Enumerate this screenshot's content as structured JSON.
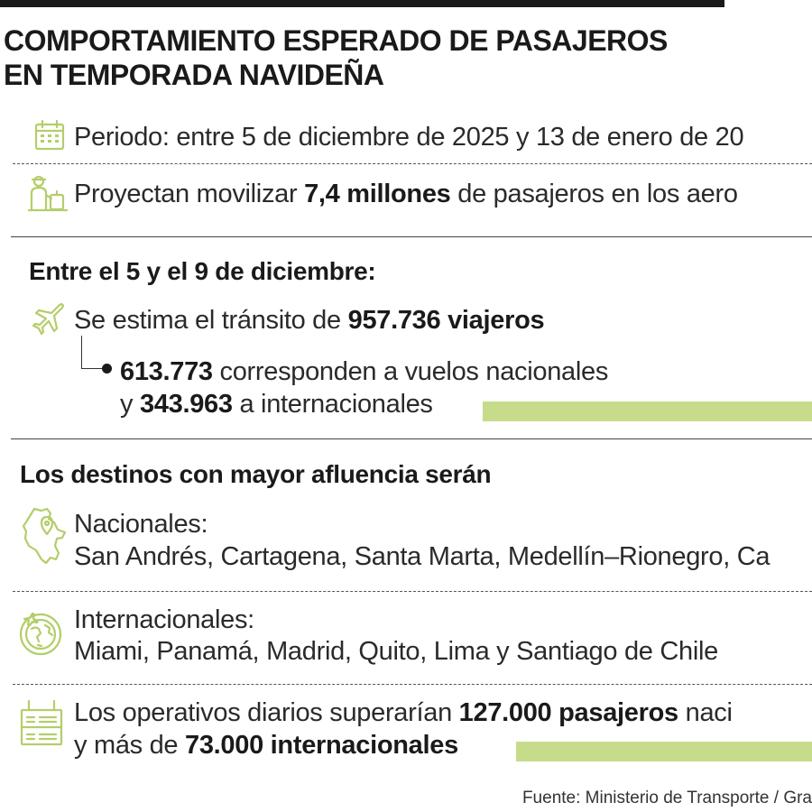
{
  "title": {
    "line1": "COMPORTAMIENTO ESPERADO DE PASAJEROS",
    "line2": "EN TEMPORADA NAVIDEÑA"
  },
  "periodo": {
    "icon": "calendar-icon",
    "text": "Periodo: entre 5 de diciembre de 2025 y 13 de enero de 20"
  },
  "proyeccion": {
    "icon": "worker-luggage-icon",
    "pre": "Proyectan movilizar ",
    "bold": "7,4 millones",
    "post": " de pasajeros en los aero"
  },
  "seccion_diciembre": {
    "heading": "Entre el 5 y el 9 de diciembre:",
    "icon": "airplane-icon",
    "transito_pre": "Se estima el tránsito de ",
    "transito_bold": "957.736 viajeros",
    "nacionales_bold": "613.773",
    "nacionales_post": " corresponden a vuelos nacionales",
    "internacionales_pre": "y ",
    "internacionales_bold": "343.963",
    "internacionales_post": " a internacionales"
  },
  "destinos": {
    "heading": "Los destinos con mayor afluencia serán",
    "nacionales": {
      "icon": "colombia-map-pin-icon",
      "label": "Nacionales:",
      "list": "San Andrés, Cartagena, Santa Marta, Medellín–Rionegro, Ca"
    },
    "internacionales": {
      "icon": "globe-plane-icon",
      "label": "Internacionales:",
      "list": "Miami, Panamá, Madrid, Quito, Lima y Santiago de Chile"
    }
  },
  "operativos": {
    "icon": "departures-board-icon",
    "line1_pre": "Los operativos diarios superarían ",
    "line1_bold": "127.000 pasajeros",
    "line1_post": " naci",
    "line2_pre": "y más de ",
    "line2_bold": "73.000 internacionales"
  },
  "fuente": "Fuente: Ministerio de Transporte / Gra",
  "colors": {
    "accent": "#c7dc8a",
    "icon": "#b3ce6a",
    "text": "#1a1a1a"
  }
}
